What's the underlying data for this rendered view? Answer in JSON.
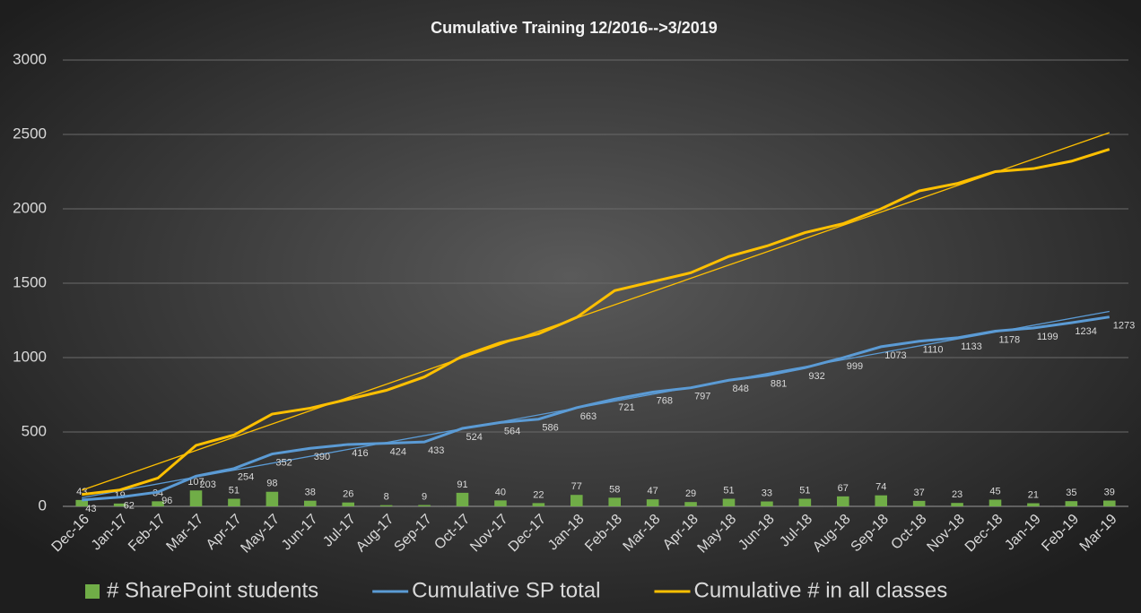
{
  "chart_data": {
    "type": "bar-line",
    "title": "Cumulative Training 12/2016-->3/2019",
    "categories": [
      "Dec-16",
      "Jan-17",
      "Feb-17",
      "Mar-17",
      "Apr-17",
      "May-17",
      "Jun-17",
      "Jul-17",
      "Aug-17",
      "Sep-17",
      "Oct-17",
      "Nov-17",
      "Dec-17",
      "Jan-18",
      "Feb-18",
      "Mar-18",
      "Apr-18",
      "May-18",
      "Jun-18",
      "Jul-18",
      "Aug-18",
      "Sep-18",
      "Oct-18",
      "Nov-18",
      "Dec-18",
      "Jan-19",
      "Feb-19",
      "Mar-19"
    ],
    "series": [
      {
        "name": "# SharePoint students",
        "type": "bar",
        "color": "#70ad47",
        "values": [
          43,
          19,
          34,
          107,
          51,
          98,
          38,
          26,
          8,
          9,
          91,
          40,
          22,
          77,
          58,
          47,
          29,
          51,
          33,
          51,
          67,
          74,
          37,
          23,
          45,
          21,
          35,
          39
        ],
        "data_labels": true
      },
      {
        "name": "Cumulative SP  total",
        "type": "line",
        "color": "#5b9bd5",
        "values": [
          43,
          62,
          96,
          203,
          254,
          352,
          390,
          416,
          424,
          433,
          524,
          564,
          586,
          663,
          721,
          768,
          797,
          848,
          881,
          932,
          999,
          1073,
          1110,
          1133,
          1178,
          1199,
          1234,
          1273
        ],
        "data_labels": true,
        "trendline": true
      },
      {
        "name": "Cumulative # in all classes",
        "type": "line",
        "color": "#ffc000",
        "values": [
          80,
          110,
          190,
          410,
          480,
          620,
          660,
          720,
          780,
          870,
          1010,
          1100,
          1160,
          1270,
          1450,
          1510,
          1570,
          1680,
          1750,
          1840,
          1900,
          2000,
          2120,
          2170,
          2250,
          2270,
          2320,
          2400
        ],
        "data_labels": false,
        "trendline": true
      }
    ],
    "ylim": [
      0,
      3000
    ],
    "yticks": [
      0,
      500,
      1000,
      1500,
      2000,
      2500,
      3000
    ],
    "grid": true,
    "legend": "bottom"
  }
}
